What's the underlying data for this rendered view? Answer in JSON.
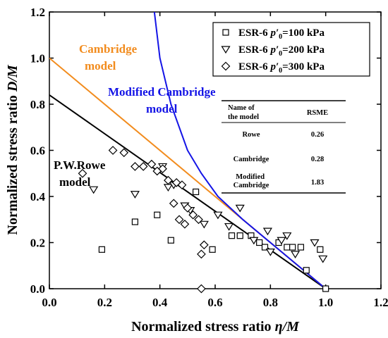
{
  "chart_data": {
    "type": "scatter",
    "xlabel_main": "Normalized stress ratio ",
    "xlabel_var": "η/M",
    "ylabel_main": "Normalized stress ratio ",
    "ylabel_var": "D/M",
    "xlim": [
      0,
      1.2
    ],
    "ylim": [
      0,
      1.2
    ],
    "xticks": [
      0.0,
      0.2,
      0.4,
      0.6,
      0.8,
      1.0,
      1.2
    ],
    "yticks": [
      0.0,
      0.2,
      0.4,
      0.6,
      0.8,
      1.0,
      1.2
    ],
    "xtick_labels": [
      "0.0",
      "0.2",
      "0.4",
      "0.6",
      "0.8",
      "1.0",
      "1.2"
    ],
    "ytick_labels": [
      "0.0",
      "0.2",
      "0.4",
      "0.6",
      "0.8",
      "1.0",
      "1.2"
    ],
    "grid": false,
    "legend_position": "top-right",
    "series": [
      {
        "legend_prefix": "ESR-6 ",
        "legend_var": "p′",
        "legend_sub": "0",
        "legend_suffix": "=100 kPa",
        "marker": "square",
        "points": [
          [
            0.19,
            0.17
          ],
          [
            0.31,
            0.29
          ],
          [
            0.39,
            0.32
          ],
          [
            0.44,
            0.21
          ],
          [
            0.53,
            0.42
          ],
          [
            0.59,
            0.17
          ],
          [
            0.66,
            0.23
          ],
          [
            0.69,
            0.23
          ],
          [
            0.73,
            0.23
          ],
          [
            0.76,
            0.2
          ],
          [
            0.78,
            0.18
          ],
          [
            0.83,
            0.2
          ],
          [
            0.86,
            0.18
          ],
          [
            0.88,
            0.18
          ],
          [
            0.91,
            0.18
          ],
          [
            0.93,
            0.08
          ],
          [
            0.98,
            0.17
          ],
          [
            1.0,
            0.0
          ]
        ]
      },
      {
        "legend_prefix": "ESR-6 ",
        "legend_var": "p′",
        "legend_sub": "0",
        "legend_suffix": "=200 kPa",
        "marker": "triangle-down",
        "points": [
          [
            0.16,
            0.43
          ],
          [
            0.31,
            0.41
          ],
          [
            0.41,
            0.53
          ],
          [
            0.43,
            0.44
          ],
          [
            0.45,
            0.45
          ],
          [
            0.49,
            0.36
          ],
          [
            0.51,
            0.34
          ],
          [
            0.56,
            0.28
          ],
          [
            0.61,
            0.32
          ],
          [
            0.65,
            0.27
          ],
          [
            0.69,
            0.35
          ],
          [
            0.74,
            0.21
          ],
          [
            0.79,
            0.25
          ],
          [
            0.8,
            0.16
          ],
          [
            0.84,
            0.21
          ],
          [
            0.86,
            0.23
          ],
          [
            0.89,
            0.15
          ],
          [
            0.96,
            0.2
          ],
          [
            0.99,
            0.13
          ]
        ]
      },
      {
        "legend_prefix": "ESR-6 ",
        "legend_var": "p′",
        "legend_sub": "0",
        "legend_suffix": "=300 kPa",
        "marker": "diamond",
        "points": [
          [
            0.12,
            0.5
          ],
          [
            0.23,
            0.6
          ],
          [
            0.27,
            0.59
          ],
          [
            0.31,
            0.53
          ],
          [
            0.34,
            0.53
          ],
          [
            0.37,
            0.54
          ],
          [
            0.39,
            0.51
          ],
          [
            0.41,
            0.52
          ],
          [
            0.43,
            0.47
          ],
          [
            0.46,
            0.46
          ],
          [
            0.48,
            0.45
          ],
          [
            0.45,
            0.37
          ],
          [
            0.47,
            0.3
          ],
          [
            0.49,
            0.28
          ],
          [
            0.5,
            0.35
          ],
          [
            0.52,
            0.32
          ],
          [
            0.54,
            0.3
          ],
          [
            0.55,
            0.15
          ],
          [
            0.56,
            0.19
          ],
          [
            0.55,
            0.0
          ]
        ]
      }
    ],
    "lines": [
      {
        "label_lines": [
          "P.W.Rowe",
          "model"
        ],
        "color": "#000000",
        "points": [
          [
            0,
            0.84
          ],
          [
            1.0,
            0.0
          ]
        ]
      },
      {
        "label_lines": [
          "Cambridge",
          "model"
        ],
        "color": "#f28c1e",
        "points": [
          [
            0,
            1.0
          ],
          [
            1.0,
            0.0
          ]
        ]
      },
      {
        "label_lines": [
          "Modified Cambridge",
          "model"
        ],
        "color": "#1414e6",
        "points": [
          [
            0.38,
            1.2
          ],
          [
            0.4,
            1.0
          ],
          [
            0.44,
            0.8
          ],
          [
            0.5,
            0.6
          ],
          [
            0.55,
            0.5
          ],
          [
            0.61,
            0.4
          ],
          [
            0.7,
            0.3
          ],
          [
            0.8,
            0.2
          ],
          [
            0.9,
            0.1
          ],
          [
            1.0,
            0.0
          ]
        ]
      }
    ],
    "table": {
      "headers": [
        "Name of the model",
        "RSME"
      ],
      "header_lines": [
        "Name of",
        "the model"
      ],
      "rows": [
        {
          "model": [
            "Rowe"
          ],
          "rsme": "0.26"
        },
        {
          "model": [
            "Cambridge"
          ],
          "rsme": "0.28"
        },
        {
          "model": [
            "Modified",
            "Cambridge"
          ],
          "rsme": "1.83"
        }
      ]
    }
  }
}
